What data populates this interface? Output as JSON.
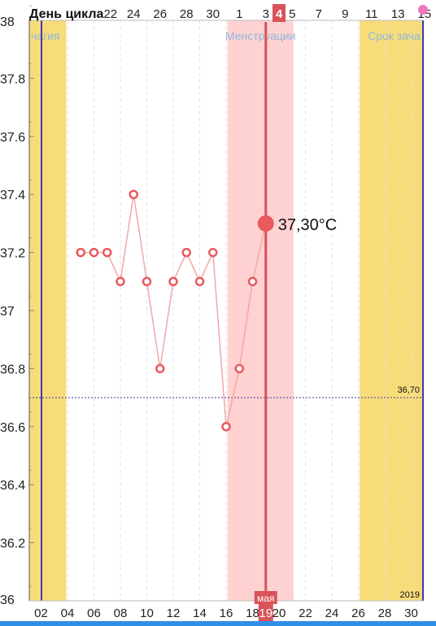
{
  "header": {
    "cycle_day_label": "День цикла"
  },
  "colors": {
    "fertile_band": "#f8dc7a",
    "menstruation_band": "#ffd1d1",
    "series_line": "#f3a7a7",
    "series_point": "#e85a5e",
    "current_line": "#d9535a",
    "coverline": "#3a3aa0",
    "axis_border": "#3b3bb0"
  },
  "chart_data": {
    "type": "line",
    "ylim": [
      36,
      38
    ],
    "y_ticks": [
      "36",
      "36.2",
      "36.4",
      "36.6",
      "36.8",
      "37",
      "37.2",
      "37.4",
      "37.6",
      "37.8",
      "38"
    ],
    "cycle_day_ticks": [
      {
        "x": -0.75,
        "label": "22"
      },
      {
        "x": 1,
        "label": "24"
      },
      {
        "x": 3,
        "label": "26"
      },
      {
        "x": 5,
        "label": "28"
      },
      {
        "x": 7,
        "label": "30"
      },
      {
        "x": 9,
        "label": "1"
      },
      {
        "x": 11,
        "label": "3"
      },
      {
        "x": 12,
        "label": "4",
        "highlight": true
      },
      {
        "x": 13,
        "label": "5"
      },
      {
        "x": 15,
        "label": "7"
      },
      {
        "x": 17,
        "label": "9"
      },
      {
        "x": 19,
        "label": "11"
      },
      {
        "x": 21,
        "label": "13"
      },
      {
        "x": 23,
        "label": "15"
      }
    ],
    "date_ticks": [
      {
        "x": -6,
        "label": "02"
      },
      {
        "x": -4,
        "label": "04"
      },
      {
        "x": -2,
        "label": "06"
      },
      {
        "x": 0,
        "label": "08"
      },
      {
        "x": 2,
        "label": "10"
      },
      {
        "x": 4,
        "label": "12"
      },
      {
        "x": 6,
        "label": "14"
      },
      {
        "x": 8,
        "label": "16"
      },
      {
        "x": 10,
        "label": "18"
      },
      {
        "x": 11,
        "label": "19",
        "highlight": true
      },
      {
        "x": 12,
        "label": "20"
      },
      {
        "x": 14,
        "label": "22"
      },
      {
        "x": 16,
        "label": "24"
      },
      {
        "x": 18,
        "label": "26"
      },
      {
        "x": 20,
        "label": "28"
      },
      {
        "x": 22,
        "label": "30"
      }
    ],
    "month_label": "мая",
    "year_label": "2019",
    "bands": [
      {
        "kind": "fertile",
        "label": "чагия",
        "x_start": -7.1,
        "x_end": -4.1
      },
      {
        "kind": "menstruation",
        "label": "Менструации",
        "x_start": 8.1,
        "x_end": 13.1
      },
      {
        "kind": "fertile",
        "label": "Срок зача",
        "x_start": 18.1,
        "x_end": 23.5
      }
    ],
    "coverline": {
      "value": 36.7,
      "label": "36,70"
    },
    "series": [
      {
        "x": [
          -3,
          -2,
          -1,
          0,
          1,
          2,
          3,
          4,
          5,
          6,
          7,
          8,
          9,
          10,
          11
        ],
        "values": [
          37.2,
          37.2,
          37.2,
          37.1,
          37.4,
          37.1,
          36.8,
          37.1,
          37.2,
          37.1,
          37.2,
          36.6,
          36.8,
          37.1,
          37.3
        ]
      }
    ],
    "current": {
      "x": 11,
      "value": 37.3,
      "label": "37,30°C"
    }
  }
}
